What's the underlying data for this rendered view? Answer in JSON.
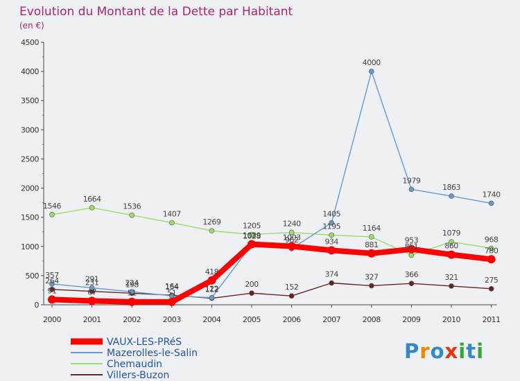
{
  "chart_data": {
    "type": "line",
    "title": "Evolution du Montant de la Dette par Habitant",
    "subtitle": "(en €)",
    "xlabel": "",
    "ylabel": "",
    "ylim": [
      0,
      4500
    ],
    "yticks": [
      0,
      500,
      1000,
      1500,
      2000,
      2500,
      3000,
      3500,
      4000,
      4500
    ],
    "categories": [
      "2000",
      "2001",
      "2002",
      "2003",
      "2004",
      "2005",
      "2006",
      "2007",
      "2008",
      "2009",
      "2010",
      "2011"
    ],
    "grid": false,
    "legend_position": "bottom-left",
    "series": [
      {
        "name": "VAUX-LES-PRéS",
        "color": "#ff0000",
        "values": [
          91,
          67,
          51,
          51,
          418,
          1039,
          1003,
          934,
          881,
          953,
          860,
          780
        ],
        "labels": [
          "91",
          "67",
          "51",
          "51",
          "418",
          "1039",
          "1003",
          "934",
          "881",
          "953",
          "860",
          "780"
        ]
      },
      {
        "name": "Mazerolles-le-Salin",
        "color": "#6699cc",
        "values": [
          357,
          291,
          224,
          154,
          122,
          1028,
          962,
          1405,
          4000,
          1979,
          1863,
          1740
        ],
        "labels": [
          "357",
          "291",
          "224",
          "154",
          "122",
          "1028",
          "962",
          "1405",
          "4000",
          "1979",
          "1863",
          "1740"
        ]
      },
      {
        "name": "Chemaudin",
        "color": "#99dd66",
        "values": [
          1546,
          1664,
          1536,
          1407,
          1269,
          1205,
          1240,
          1195,
          1164,
          851,
          1079,
          968
        ],
        "labels": [
          "1546",
          "1664",
          "1536",
          "1407",
          "1269",
          "1205",
          "1240",
          "1195",
          "1164",
          "851",
          "1079",
          "968"
        ]
      },
      {
        "name": "Villers-Buzon",
        "color": "#662222",
        "values": [
          264,
          231,
          198,
          164,
          112,
          200,
          152,
          374,
          327,
          366,
          321,
          275
        ],
        "labels": [
          "264",
          "231",
          "198",
          "164",
          "112",
          "200",
          "152",
          "374",
          "327",
          "366",
          "321",
          "275"
        ]
      }
    ]
  },
  "brand": {
    "letters": [
      "P",
      "r",
      "o",
      "x",
      "i",
      "t",
      "i"
    ],
    "colors": [
      "#3388cc",
      "#ee8800",
      "#3388cc",
      "#ee3300",
      "#33aa33",
      "#3388cc",
      "#33aa33"
    ]
  }
}
